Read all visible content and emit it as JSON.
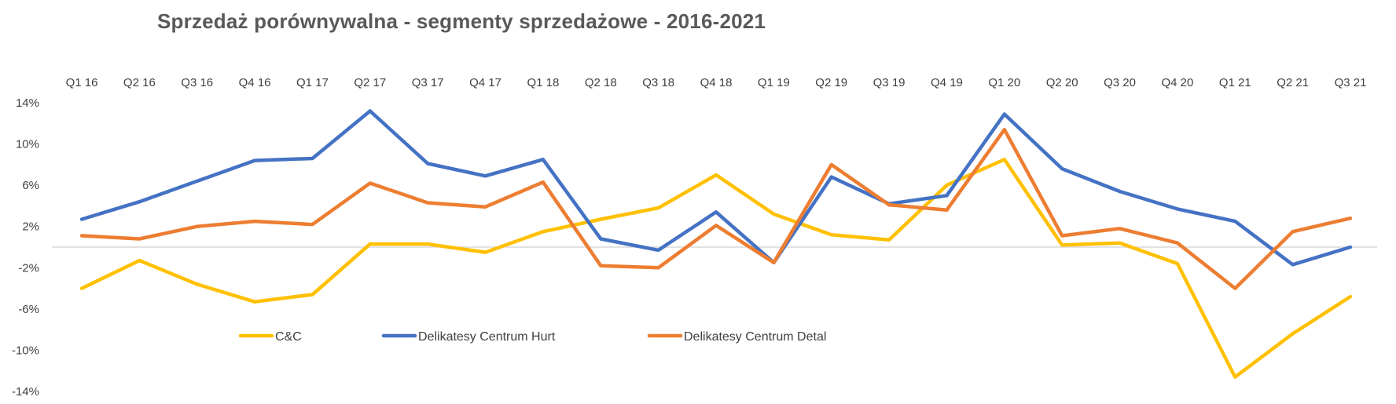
{
  "chart_data": {
    "type": "line",
    "title": "Sprzedaż porównywalna - segmenty sprzedażowe - 2016-2021",
    "xlabel": "",
    "ylabel": "",
    "categories": [
      "Q1 16",
      "Q2 16",
      "Q3 16",
      "Q4 16",
      "Q1 17",
      "Q2 17",
      "Q3 17",
      "Q4 17",
      "Q1 18",
      "Q2 18",
      "Q3 18",
      "Q4 18",
      "Q1 19",
      "Q2 19",
      "Q3 19",
      "Q4 19",
      "Q1 20",
      "Q2 20",
      "Q3 20",
      "Q4 20",
      "Q1 21",
      "Q2 21",
      "Q3 21"
    ],
    "ylim": [
      -14,
      14
    ],
    "yticks": [
      14,
      10,
      6,
      2,
      -2,
      -6,
      -10,
      -14
    ],
    "ytick_labels": [
      "14%",
      "10%",
      "6%",
      "2%",
      "-2%",
      "-6%",
      "-10%",
      "-14%"
    ],
    "grid": false,
    "zero_line": true,
    "x_tick_position": "top",
    "legend_position": "bottom-left",
    "series": [
      {
        "name": "C&C",
        "color": "#FFC000",
        "values": [
          -4.0,
          -1.3,
          -3.6,
          -5.3,
          -4.6,
          0.3,
          0.3,
          -0.5,
          1.5,
          2.7,
          3.8,
          7.0,
          3.2,
          1.2,
          0.7,
          6.0,
          8.5,
          0.2,
          0.4,
          -1.6,
          -12.6,
          -8.4,
          -4.8
        ]
      },
      {
        "name": "Delikatesy Centrum Hurt",
        "color": "#4472C4",
        "values": [
          2.7,
          4.4,
          6.4,
          8.4,
          8.6,
          13.2,
          8.1,
          6.9,
          8.5,
          0.8,
          -0.3,
          3.4,
          -1.5,
          6.8,
          4.2,
          5.0,
          12.9,
          7.6,
          5.4,
          3.7,
          2.5,
          -1.7,
          0.0
        ]
      },
      {
        "name": "Delikatesy Centrum Detal",
        "color": "#ED7D31",
        "values": [
          1.1,
          0.8,
          2.0,
          2.5,
          2.2,
          6.2,
          4.3,
          3.9,
          6.3,
          -1.8,
          -2.0,
          2.1,
          -1.5,
          8.0,
          4.1,
          3.6,
          11.4,
          1.1,
          1.8,
          0.4,
          -4.0,
          1.5,
          2.8
        ]
      }
    ],
    "axis_color": "#D9D9D9"
  }
}
